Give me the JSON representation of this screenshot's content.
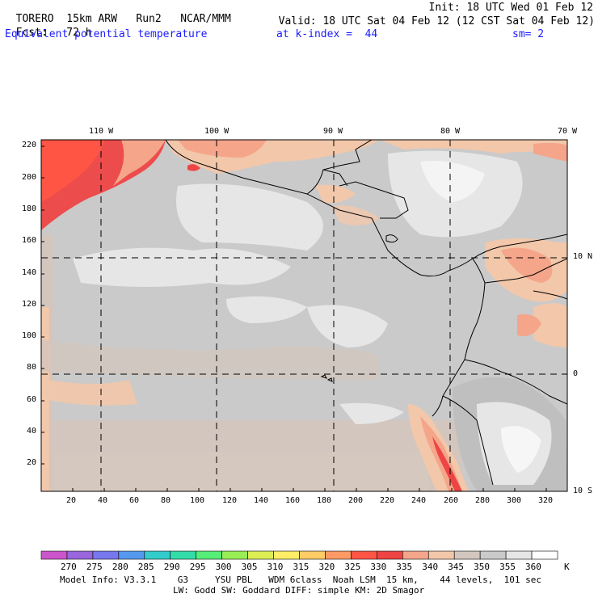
{
  "header": {
    "model": "TORERO",
    "resolution": "15km ARW",
    "run": "Run2",
    "org": "NCAR/MMM",
    "init": "Init: 18 UTC Wed 01 Feb 12",
    "fcst_label": "Fcst:",
    "fcst_value": "72 h",
    "valid": "Valid: 18 UTC Sat 04 Feb 12 (12 CST Sat 04 Feb 12)",
    "field": "Equivalent potential temperature",
    "level": "at k-index =  44",
    "smoothing": "sm= 2"
  },
  "map": {
    "top_lon_labels": [
      "110 W",
      "100 W",
      "90 W",
      "80 W",
      "70 W"
    ],
    "right_lat_labels": [
      "10 N",
      "0",
      "10 S"
    ],
    "y_ticks": [
      "220",
      "200",
      "180",
      "160",
      "140",
      "120",
      "100",
      "80",
      "60",
      "40",
      "20"
    ],
    "x_ticks": [
      "20",
      "40",
      "60",
      "80",
      "100",
      "120",
      "140",
      "160",
      "180",
      "200",
      "220",
      "240",
      "260",
      "280",
      "300",
      "320"
    ]
  },
  "colorbar": {
    "labels": [
      "270",
      "275",
      "280",
      "285",
      "290",
      "295",
      "300",
      "305",
      "310",
      "315",
      "320",
      "325",
      "330",
      "335",
      "340",
      "345",
      "350",
      "355",
      "360"
    ],
    "unit": "K",
    "colors": [
      "#cc55cc",
      "#9966dd",
      "#7777ee",
      "#5599ee",
      "#33cccc",
      "#33ddaa",
      "#55ee77",
      "#99ee55",
      "#ddee55",
      "#ffee66",
      "#ffcc66",
      "#ff9966",
      "#ff5544",
      "#ee4444",
      "#f4a58a",
      "#f2c7aa",
      "#d2c6be",
      "#cacaca",
      "#e6e6e6",
      "#ffffff"
    ]
  },
  "footer": {
    "line1": "Model Info: V3.3.1    G3     YSU PBL   WDM 6class  Noah LSM  15 km,    44 levels,  101 sec",
    "line2": "LW: Godd SW: Goddard DIFF: simple KM: 2D Smagor"
  }
}
